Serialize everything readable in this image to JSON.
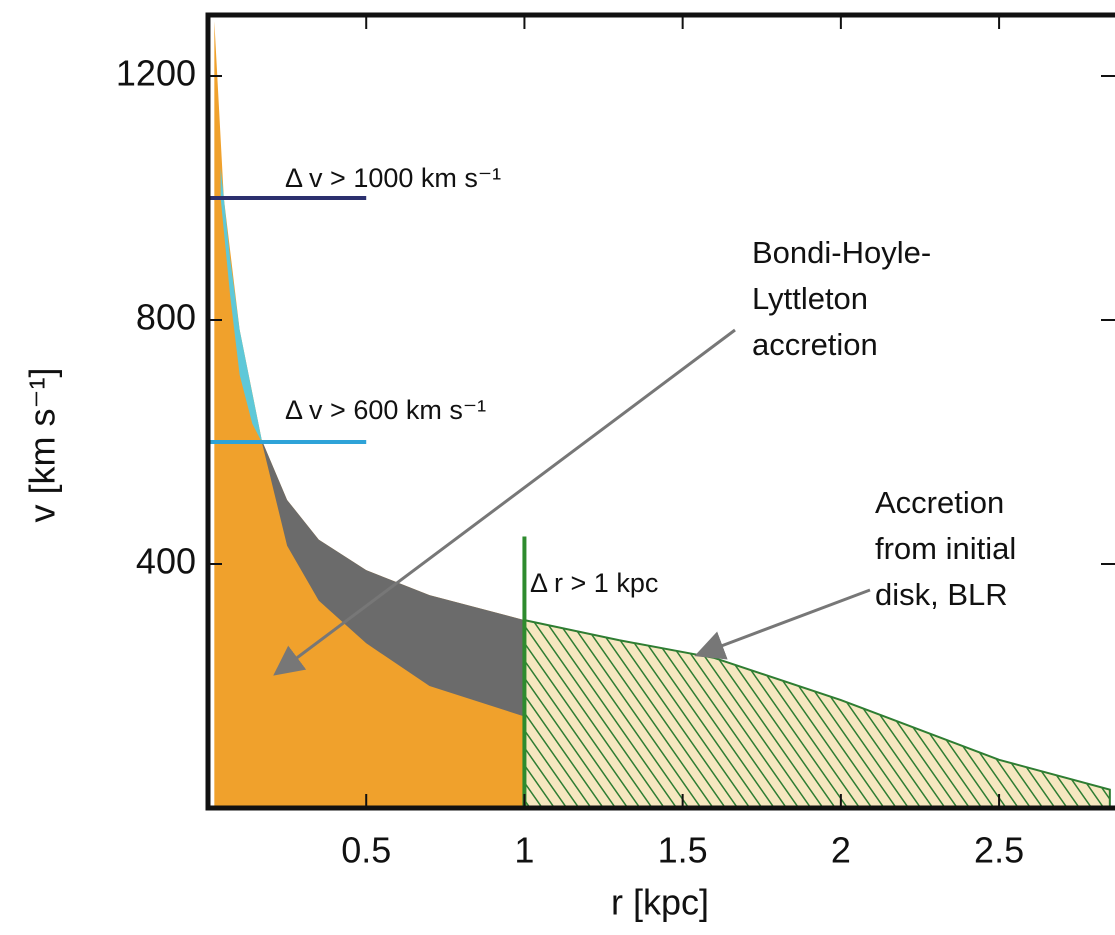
{
  "chart_data": {
    "type": "area",
    "xlabel": "r [kpc]",
    "ylabel": "v [km s⁻¹]",
    "xlim": [
      0,
      2.86
    ],
    "ylim": [
      0,
      1300
    ],
    "xticks": [
      0.5,
      1,
      1.5,
      2,
      2.5
    ],
    "yticks": [
      400,
      800,
      1200
    ],
    "areas": [
      {
        "color": "#f0a12c",
        "x": [
          0.02,
          0.05,
          0.1,
          0.17,
          0.25,
          0.35,
          0.5,
          0.7,
          1
        ],
        "upper": [
          1290,
          1000,
          784,
          603,
          505,
          440,
          390,
          349,
          308
        ]
      },
      {
        "color": "#6b6b6b",
        "x": [
          0.17,
          0.25,
          0.35,
          0.5,
          0.7,
          1
        ],
        "upper": [
          603,
          505,
          440,
          390,
          349,
          308
        ],
        "lower": [
          600,
          430,
          340,
          270,
          200,
          150
        ]
      },
      {
        "color": "#5ec8d8",
        "x": [
          0.04,
          0.07,
          0.1,
          0.14,
          0.17
        ],
        "upper": [
          1050,
          900,
          784,
          680,
          603
        ],
        "lower": [
          1000,
          840,
          710,
          630,
          600
        ]
      },
      {
        "color": "#2e7d32",
        "hatch": true,
        "x": [
          1,
          1.3,
          1.6,
          2,
          2.5,
          2.85
        ],
        "upper": [
          308,
          275,
          246,
          177,
          79,
          30
        ]
      }
    ],
    "lines": [
      {
        "color": "#2b2f6e",
        "x": [
          0,
          0.5
        ],
        "values": [
          1000,
          1000
        ]
      },
      {
        "color": "#2ea3d8",
        "x": [
          0,
          0.5
        ],
        "values": [
          600,
          600
        ]
      },
      {
        "color": "#2e8b2e",
        "x": [
          1,
          1
        ],
        "values": [
          0,
          445
        ]
      }
    ],
    "annotations": [
      {
        "text": [
          "Δ v >  1000 km s⁻¹"
        ]
      },
      {
        "text": [
          "Δ v >  600 km s⁻¹"
        ]
      },
      {
        "text": [
          "Δ r >  1 kpc"
        ]
      },
      {
        "text": [
          "Bondi-Hoyle-",
          "Lyttleton",
          " accretion"
        ]
      },
      {
        "text": [
          "Accretion",
          "from initial",
          "disk, BLR"
        ]
      }
    ]
  }
}
